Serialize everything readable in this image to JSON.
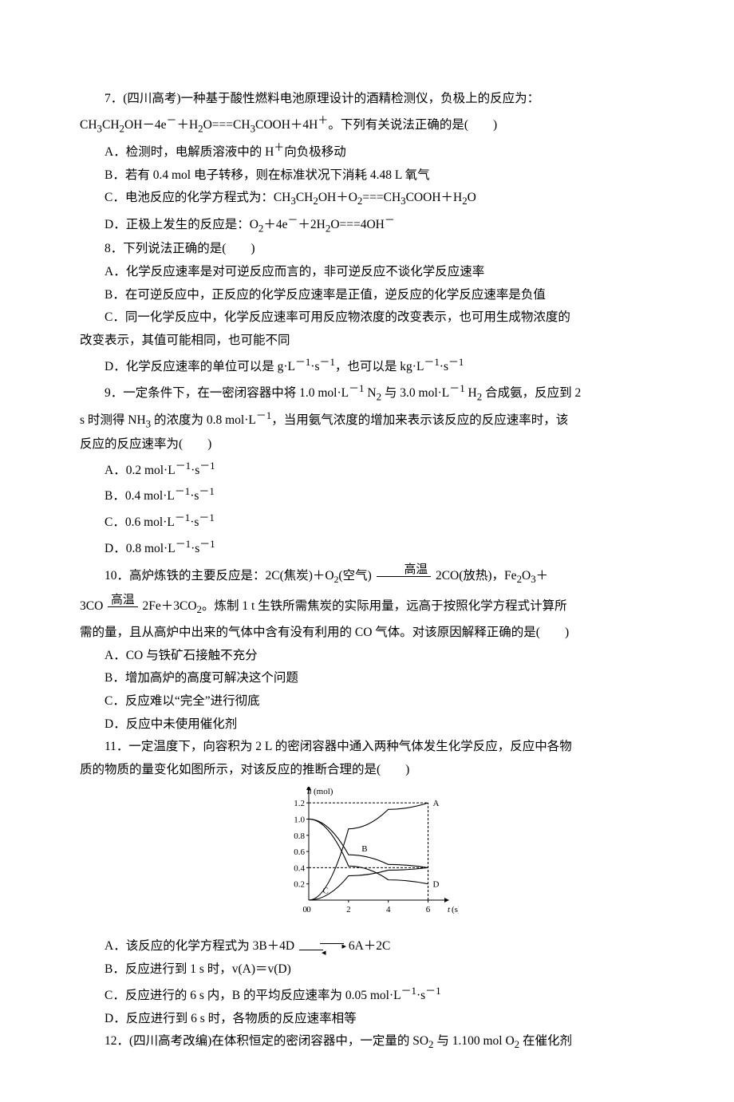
{
  "q7": {
    "stem_a": "7．(四川高考)一种基于酸性燃料电池原理设计的酒精检测仪，负极上的反应为：",
    "stem_b_html": "CH<sub>3</sub>CH<sub>2</sub>OH－4e<sup>－</sup>＋H<sub>2</sub>O===CH<sub>3</sub>COOH＋4H<sup>＋</sup>。下列有关说法正确的是(　　)",
    "A_html": "A．检测时，电解质溶液中的 H<sup>＋</sup>向负极移动",
    "B_html": "B．若有 0.4 mol 电子转移，则在标准状况下消耗 4.48 L 氧气",
    "C_html": "C．电池反应的化学方程式为：CH<sub>3</sub>CH<sub>2</sub>OH＋O<sub>2</sub>===CH<sub>3</sub>COOH＋H<sub>2</sub>O",
    "D_html": "D．正极上发生的反应是：O<sub>2</sub>＋4e<sup>－</sup>＋2H<sub>2</sub>O===4OH<sup>－</sup>"
  },
  "q8": {
    "stem": "8．下列说法正确的是(　　)",
    "A": "A．化学反应速率是对可逆反应而言的，非可逆反应不谈化学反应速率",
    "B": "B．在可逆反应中，正反应的化学反应速率是正值，逆反应的化学反应速率是负值",
    "C1": "C．同一化学反应中，化学反应速率可用反应物浓度的改变表示，也可用生成物浓度的",
    "C2": "改变表示，其值可能相同，也可能不同",
    "D_html": "D．化学反应速率的单位可以是 g·L<sup>－1</sup>·s<sup>－1</sup>，也可以是 kg·L<sup>－1</sup>·s<sup>－1</sup>"
  },
  "q9": {
    "stem1_html": "9．一定条件下，在一密闭容器中将 1.0 mol·L<sup>－1</sup> N<sub>2</sub> 与 3.0 mol·L<sup>－1</sup> H<sub>2</sub> 合成氨，反应到 2",
    "stem2_html": "s 时测得 NH<sub>3</sub> 的浓度为 0.8 mol·L<sup>－1</sup>，当用氨气浓度的增加来表示该反应的反应速率时，该",
    "stem3": "反应的反应速率为(　　)",
    "A_html": "A．0.2 mol·L<sup>－1</sup>·s<sup>－1</sup>",
    "B_html": "B．0.4 mol·L<sup>－1</sup>·s<sup>－1</sup>",
    "C_html": "C．0.6 mol·L<sup>－1</sup>·s<sup>－1</sup>",
    "D_html": "D．0.8 mol·L<sup>－1</sup>·s<sup>－1</sup>"
  },
  "q10": {
    "label": "10．高炉炼铁的主要反应是：2C(焦炭)＋O",
    "sub_o2": "2",
    "after_o2": "(空气)",
    "cond1": "高温",
    "prod1_html": "2CO(放热)，Fe<sub>2</sub>O<sub>3</sub>＋",
    "line2_pre": "3CO",
    "cond2": "高温",
    "line2_post_html": "2Fe＋3CO<sub>2</sub>。炼制 1 t 生铁所需焦炭的实际用量，远高于按照化学方程式计算所",
    "line3": "需的量，且从高炉中出来的气体中含有没有利用的 CO 气体。对该原因解释正确的是(　　)",
    "A": "A．CO 与铁矿石接触不充分",
    "B": "B．增加高炉的高度可解决这个问题",
    "C": "C．反应难以“完全”进行彻底",
    "D": "D．反应中未使用催化剂"
  },
  "q11": {
    "stem1": "11．一定温度下，向容积为 2 L 的密闭容器中通入两种气体发生化学反应，反应中各物",
    "stem2": "质的物质的量变化如图所示，对该反应的推断合理的是(　　)",
    "A_pre": "A．该反应的化学方程式为 3B＋4D",
    "A_post": "6A＋2C",
    "B": "B．反应进行到 1 s 时，v(A)＝v(D)",
    "C_html": "C．反应进行的 6 s 内，B 的平均反应速率为 0.05 mol·L<sup>－1</sup>·s<sup>－1</sup>",
    "D": "D．反应进行到 6 s 时，各物质的反应速率相等",
    "chart": {
      "ylabel": "n(mol)",
      "xlabel": "t(s)",
      "yticks": [
        "0",
        "0.2",
        "0.4",
        "0.6",
        "0.8",
        "1.0",
        "1.2"
      ],
      "xticks": [
        "0",
        "2",
        "4",
        "6"
      ],
      "series_A": {
        "label": "A",
        "points": [
          [
            0,
            0
          ],
          [
            2,
            0.88
          ],
          [
            4,
            1.12
          ],
          [
            6,
            1.2
          ]
        ],
        "dashed": false
      },
      "series_B": {
        "label": "B",
        "points": [
          [
            0,
            1.0
          ],
          [
            2,
            0.56
          ],
          [
            4,
            0.44
          ],
          [
            6,
            0.4
          ]
        ],
        "dashed": false
      },
      "series_C": {
        "label": "C",
        "points": [
          [
            0,
            0
          ],
          [
            2,
            0.3
          ],
          [
            4,
            0.37
          ],
          [
            6,
            0.4
          ]
        ],
        "dashed": false
      },
      "series_D": {
        "label": "D",
        "points": [
          [
            0,
            1.0
          ],
          [
            2,
            0.42
          ],
          [
            4,
            0.25
          ],
          [
            6,
            0.2
          ]
        ],
        "dashed": false
      },
      "axis_color": "#000",
      "line_color": "#000",
      "font_size": 11
    }
  },
  "q12": {
    "stem_html": "12．(四川高考改编)在体积恒定的密闭容器中，一定量的 SO<sub>2</sub> 与 1.100 mol O<sub>2</sub> 在催化剂"
  }
}
